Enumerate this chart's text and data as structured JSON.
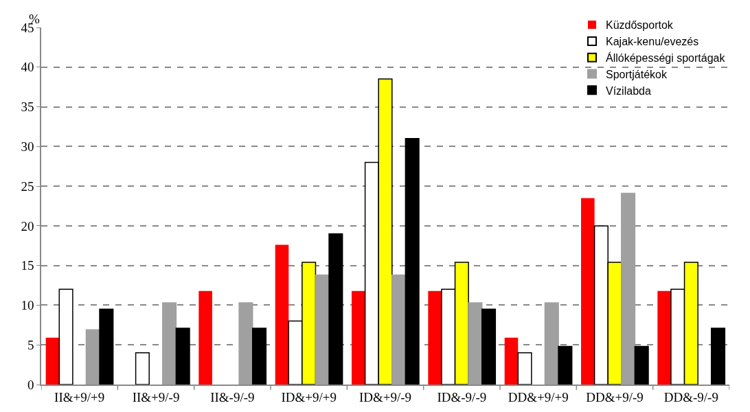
{
  "chart_data": {
    "type": "bar",
    "ylabel": "%",
    "categories": [
      "II&+9/+9",
      "II&+9/-9",
      "II&-9/-9",
      "ID&+9/+9",
      "ID&+9/-9",
      "ID&-9/-9",
      "DD&+9/+9",
      "DD&+9/-9",
      "DD&-9/-9"
    ],
    "series": [
      {
        "name": "Küzdősportok",
        "color": "#ff0000",
        "values": [
          5.9,
          null,
          11.8,
          17.6,
          11.8,
          11.8,
          5.9,
          23.5,
          11.8
        ]
      },
      {
        "name": "Kajak-kenu/evezés",
        "color": "#ffffff",
        "values": [
          12,
          4,
          null,
          8,
          28,
          12,
          4,
          20,
          12
        ]
      },
      {
        "name": "Állóképességi sportágak",
        "color": "#ffff00",
        "values": [
          null,
          null,
          null,
          15.4,
          38.5,
          15.4,
          null,
          15.4,
          15.4
        ]
      },
      {
        "name": "Sportjátékok",
        "color": "#a0a0a0",
        "values": [
          6.9,
          10.3,
          10.3,
          13.8,
          13.8,
          10.3,
          10.3,
          24.1,
          null
        ]
      },
      {
        "name": "Vízilabda",
        "color": "#000000",
        "values": [
          9.5,
          7.1,
          7.1,
          19,
          31,
          9.5,
          4.8,
          4.8,
          7.1
        ]
      }
    ],
    "ylim": [
      0,
      45
    ],
    "yticks": [
      0,
      5,
      10,
      15,
      20,
      25,
      30,
      35,
      40,
      45
    ],
    "grid": "y",
    "legend": "top right"
  }
}
